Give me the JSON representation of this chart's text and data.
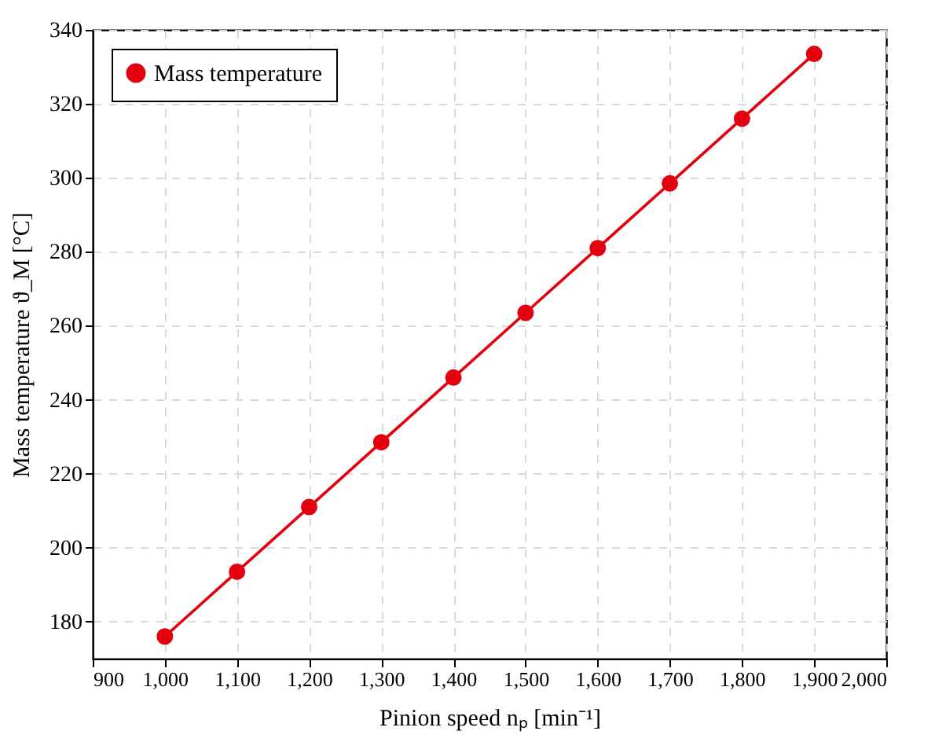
{
  "chart_data": {
    "type": "line",
    "xlabel": "Pinion speed nₚ [min⁻¹]",
    "ylabel": "Mass temperature ϑ_M [°C]",
    "x": [
      1000,
      1100,
      1200,
      1300,
      1400,
      1500,
      1600,
      1700,
      1800,
      1900
    ],
    "series": [
      {
        "name": "Mass temperature",
        "color": "#e3000f",
        "values": [
          176,
          193.5,
          211,
          228.5,
          246,
          263.5,
          281,
          298.5,
          316,
          333.5
        ]
      }
    ],
    "xlim": [
      900,
      2000
    ],
    "xticks": [
      900,
      {
        "value": 1000,
        "label": "1,000"
      },
      {
        "value": 1100,
        "label": "1,100"
      },
      {
        "value": 1200,
        "label": "1,200"
      },
      {
        "value": 1300,
        "label": "1,300"
      },
      {
        "value": 1400,
        "label": "1,400"
      },
      {
        "value": 1500,
        "label": "1,500"
      },
      {
        "value": 1600,
        "label": "1,600"
      },
      {
        "value": 1700,
        "label": "1,700"
      },
      {
        "value": 1800,
        "label": "1,800"
      },
      {
        "value": 1900,
        "label": "1,900"
      },
      {
        "value": 2000,
        "label": "2,000"
      }
    ],
    "ylim": [
      170,
      340
    ],
    "yticks": [
      180,
      200,
      220,
      240,
      260,
      280,
      300,
      320,
      340
    ],
    "grid": true,
    "legend": "top left",
    "marker": "circle",
    "line_style": "solid"
  }
}
